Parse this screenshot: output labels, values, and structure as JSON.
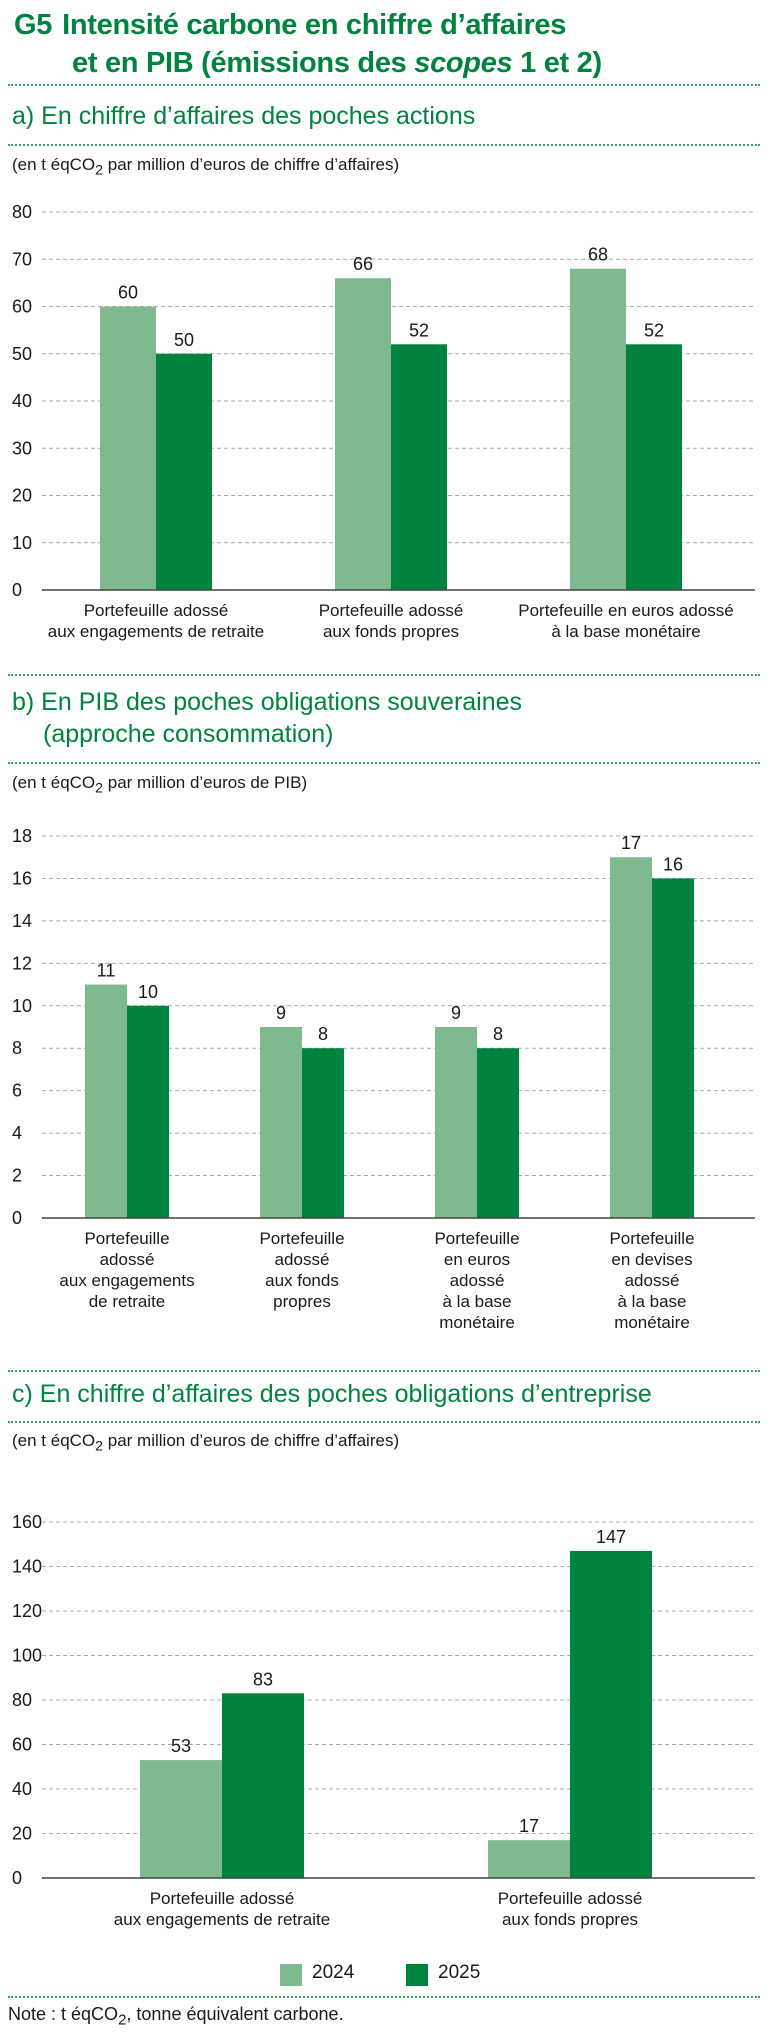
{
  "title": {
    "code": "G5",
    "line1": "Intensité carbone en chiffre d’affaires",
    "line2_a": "et en PIB  (émissions des ",
    "line2_em": "scopes",
    "line2_b": " 1 et 2)"
  },
  "colors": {
    "s2024": "#7fb98f",
    "s2025": "#00833f",
    "accent": "#00833f",
    "grid": "#a9a9a9"
  },
  "legend": {
    "s2024": "2024",
    "s2025": "2025"
  },
  "note": {
    "a": "Note : t éqCO",
    "sub": "2",
    "b": ", tonne équivalent carbone."
  },
  "chart_data": [
    {
      "type": "bar",
      "section_label": "a)  En chiffre d’affaires des poches actions",
      "unit": {
        "a": "(en t éqCO",
        "sub": "2",
        "b": " par million d’euros de chiffre d’affaires)"
      },
      "categories": [
        [
          "Portefeuille adossé",
          "aux engagements de retraite"
        ],
        [
          "Portefeuille adossé",
          "aux fonds propres"
        ],
        [
          "Portefeuille en euros adossé",
          "à la base monétaire"
        ]
      ],
      "series": [
        {
          "name": "2024",
          "values": [
            60,
            66,
            68
          ]
        },
        {
          "name": "2025",
          "values": [
            50,
            52,
            52
          ]
        }
      ],
      "ylim": [
        0,
        80
      ],
      "yticks": [
        0,
        10,
        20,
        30,
        40,
        50,
        60,
        70,
        80
      ],
      "grid": true,
      "legend": "bottom"
    },
    {
      "type": "bar",
      "section_label": "b)  En PIB des poches obligations souveraines",
      "section_label_2": "(approche consommation)",
      "unit": {
        "a": "(en t éqCO",
        "sub": "2",
        "b": " par million d’euros de PIB)"
      },
      "categories": [
        [
          "Portefeuille",
          "adossé",
          "aux engagements",
          "de retraite"
        ],
        [
          "Portefeuille",
          "adossé",
          "aux fonds",
          "propres"
        ],
        [
          "Portefeuille",
          "en euros",
          "adossé",
          "à la base",
          "monétaire"
        ],
        [
          "Portefeuille",
          "en devises",
          "adossé",
          "à la base",
          "monétaire"
        ]
      ],
      "series": [
        {
          "name": "2024",
          "values": [
            11,
            9,
            9,
            17
          ]
        },
        {
          "name": "2025",
          "values": [
            10,
            8,
            8,
            16
          ]
        }
      ],
      "ylim": [
        0,
        18
      ],
      "yticks": [
        0,
        2,
        4,
        6,
        8,
        10,
        12,
        14,
        16,
        18
      ],
      "grid": true,
      "legend": "bottom"
    },
    {
      "type": "bar",
      "section_label": "c)  En chiffre d’affaires des poches obligations d’entreprise",
      "unit": {
        "a": "(en t éqCO",
        "sub": "2",
        "b": " par million d’euros de chiffre d’affaires)"
      },
      "categories": [
        [
          "Portefeuille adossé",
          "aux engagements de retraite"
        ],
        [
          "Portefeuille adossé",
          "aux fonds propres"
        ]
      ],
      "series": [
        {
          "name": "2024",
          "values": [
            53,
            17
          ]
        },
        {
          "name": "2025",
          "values": [
            83,
            147
          ]
        }
      ],
      "ylim": [
        0,
        160
      ],
      "yticks": [
        0,
        20,
        40,
        60,
        80,
        100,
        120,
        140,
        160
      ],
      "grid": true,
      "legend": "bottom"
    }
  ]
}
